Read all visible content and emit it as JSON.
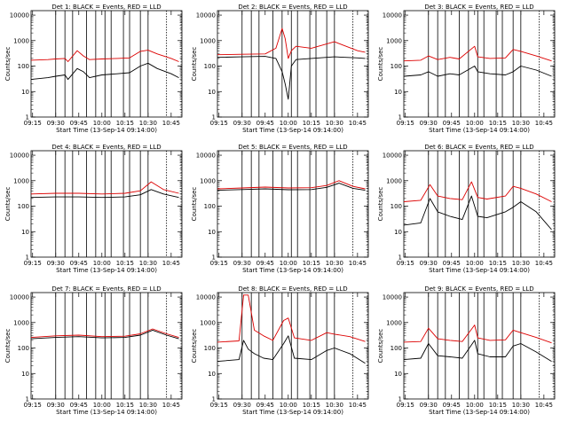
{
  "figure": {
    "x_tick_labels": [
      "09:15",
      "09:30",
      "09:45",
      "10:00",
      "10:15",
      "10:30",
      "10:45"
    ],
    "y_tick_labels": [
      "1",
      "10",
      "100",
      "1000",
      "10000"
    ],
    "y_label": "Counts/sec",
    "x_label": "Start Time (13-Sep-14 09:14:00)"
  },
  "chart_data": [
    {
      "type": "line",
      "title": "Det 1: BLACK = Events, RED = LLD",
      "xlabel": "Start Time (13-Sep-14 09:14:00)",
      "ylabel": "Counts/sec",
      "xlim": [
        "09:14",
        "10:52"
      ],
      "ylim": [
        1,
        15000
      ],
      "yscale": "log",
      "markers": [
        "09:30",
        "09:36",
        "09:41",
        "09:50",
        "09:56",
        "10:02",
        "10:06",
        "10:14",
        "10:18",
        "10:25",
        "10:30",
        "10:42"
      ],
      "series": [
        {
          "name": "BLACK = Events",
          "color": "#000000",
          "x": [
            "09:14",
            "09:25",
            "09:30",
            "09:36",
            "09:38",
            "09:44",
            "09:48",
            "09:52",
            "10:00",
            "10:10",
            "10:18",
            "10:25",
            "10:30",
            "10:36",
            "10:45",
            "10:50"
          ],
          "values": [
            30,
            35,
            40,
            45,
            30,
            80,
            60,
            35,
            45,
            50,
            55,
            100,
            130,
            80,
            50,
            35
          ]
        },
        {
          "name": "RED = LLD",
          "color": "#dd0000",
          "x": [
            "09:14",
            "09:25",
            "09:30",
            "09:36",
            "09:38",
            "09:44",
            "09:48",
            "09:52",
            "10:00",
            "10:10",
            "10:18",
            "10:25",
            "10:30",
            "10:36",
            "10:45",
            "10:50"
          ],
          "values": [
            170,
            180,
            190,
            200,
            150,
            400,
            250,
            180,
            190,
            200,
            210,
            380,
            420,
            300,
            200,
            150
          ]
        }
      ]
    },
    {
      "type": "line",
      "title": "Det 2: BLACK = Events, RED = LLD",
      "xlabel": "Start Time (13-Sep-14 09:14:00)",
      "ylabel": "Counts/sec",
      "xlim": [
        "09:14",
        "10:52"
      ],
      "ylim": [
        1,
        15000
      ],
      "yscale": "log",
      "markers": [
        "09:30",
        "09:36",
        "09:41",
        "09:50",
        "09:56",
        "10:02",
        "10:06",
        "10:14",
        "10:18",
        "10:25",
        "10:30",
        "10:42"
      ],
      "series": [
        {
          "name": "BLACK = Events",
          "color": "#000000",
          "x": [
            "09:14",
            "09:30",
            "09:45",
            "09:52",
            "09:56",
            "09:58",
            "10:00",
            "10:02",
            "10:05",
            "10:15",
            "10:30",
            "10:45",
            "10:50"
          ],
          "values": [
            220,
            230,
            240,
            200,
            60,
            20,
            5,
            100,
            180,
            200,
            230,
            210,
            200
          ]
        },
        {
          "name": "RED = LLD",
          "color": "#dd0000",
          "x": [
            "09:14",
            "09:30",
            "09:45",
            "09:52",
            "09:56",
            "09:58",
            "10:00",
            "10:02",
            "10:05",
            "10:15",
            "10:30",
            "10:45",
            "10:50"
          ],
          "values": [
            280,
            290,
            300,
            500,
            3000,
            1200,
            200,
            400,
            600,
            500,
            900,
            400,
            350
          ]
        }
      ]
    },
    {
      "type": "line",
      "title": "Det 3: BLACK = Events, RED = LLD",
      "xlabel": "Start Time (13-Sep-14 09:14:00)",
      "ylabel": "Counts/sec",
      "xlim": [
        "09:14",
        "10:52"
      ],
      "ylim": [
        1,
        15000
      ],
      "yscale": "log",
      "markers": [
        "09:30",
        "09:36",
        "09:41",
        "09:50",
        "09:56",
        "10:02",
        "10:06",
        "10:14",
        "10:18",
        "10:25",
        "10:30",
        "10:42"
      ],
      "series": [
        {
          "name": "BLACK = Events",
          "color": "#000000",
          "x": [
            "09:14",
            "09:25",
            "09:30",
            "09:36",
            "09:44",
            "09:50",
            "10:00",
            "10:02",
            "10:10",
            "10:20",
            "10:25",
            "10:30",
            "10:40",
            "10:50"
          ],
          "values": [
            40,
            45,
            60,
            40,
            50,
            45,
            100,
            60,
            50,
            45,
            60,
            100,
            70,
            40
          ]
        },
        {
          "name": "RED = LLD",
          "color": "#dd0000",
          "x": [
            "09:14",
            "09:25",
            "09:30",
            "09:36",
            "09:44",
            "09:50",
            "10:00",
            "10:02",
            "10:10",
            "10:20",
            "10:25",
            "10:30",
            "10:40",
            "10:50"
          ],
          "values": [
            160,
            170,
            250,
            180,
            220,
            190,
            600,
            230,
            200,
            210,
            450,
            380,
            250,
            160
          ]
        }
      ]
    },
    {
      "type": "line",
      "title": "Det 4: BLACK = Events, RED = LLD",
      "xlabel": "Start Time (13-Sep-14 09:14:00)",
      "ylabel": "Counts/sec",
      "xlim": [
        "09:14",
        "10:52"
      ],
      "ylim": [
        1,
        15000
      ],
      "yscale": "log",
      "markers": [
        "09:30",
        "09:36",
        "09:41",
        "09:50",
        "09:56",
        "10:02",
        "10:06",
        "10:14",
        "10:18",
        "10:25",
        "10:30",
        "10:42"
      ],
      "series": [
        {
          "name": "BLACK = Events",
          "color": "#000000",
          "x": [
            "09:14",
            "09:30",
            "09:45",
            "10:00",
            "10:15",
            "10:25",
            "10:32",
            "10:40",
            "10:50"
          ],
          "values": [
            220,
            230,
            230,
            220,
            230,
            280,
            450,
            300,
            220
          ]
        },
        {
          "name": "RED = LLD",
          "color": "#dd0000",
          "x": [
            "09:14",
            "09:30",
            "09:45",
            "10:00",
            "10:15",
            "10:25",
            "10:32",
            "10:40",
            "10:50"
          ],
          "values": [
            300,
            320,
            320,
            300,
            320,
            400,
            900,
            450,
            320
          ]
        }
      ]
    },
    {
      "type": "line",
      "title": "Det 5: BLACK = Events, RED = LLD",
      "xlabel": "Start Time (13-Sep-14 09:14:00)",
      "ylabel": "Counts/sec",
      "xlim": [
        "09:14",
        "10:52"
      ],
      "ylim": [
        1,
        15000
      ],
      "yscale": "log",
      "markers": [
        "09:30",
        "09:36",
        "09:41",
        "09:50",
        "09:56",
        "10:02",
        "10:06",
        "10:14",
        "10:18",
        "10:25",
        "10:30",
        "10:42"
      ],
      "series": [
        {
          "name": "BLACK = Events",
          "color": "#000000",
          "x": [
            "09:14",
            "09:30",
            "09:45",
            "10:00",
            "10:15",
            "10:25",
            "10:33",
            "10:42",
            "10:50"
          ],
          "values": [
            420,
            450,
            480,
            440,
            450,
            550,
            800,
            500,
            420
          ]
        },
        {
          "name": "RED = LLD",
          "color": "#dd0000",
          "x": [
            "09:14",
            "09:30",
            "09:45",
            "10:00",
            "10:15",
            "10:25",
            "10:33",
            "10:42",
            "10:50"
          ],
          "values": [
            480,
            520,
            560,
            520,
            530,
            650,
            1000,
            600,
            480
          ]
        }
      ]
    },
    {
      "type": "line",
      "title": "Det 6: BLACK = Events, RED = LLD",
      "xlabel": "Start Time (13-Sep-14 09:14:00)",
      "ylabel": "Counts/sec",
      "xlim": [
        "09:14",
        "10:52"
      ],
      "ylim": [
        1,
        15000
      ],
      "yscale": "log",
      "markers": [
        "09:30",
        "09:36",
        "09:41",
        "09:50",
        "09:56",
        "10:02",
        "10:06",
        "10:14",
        "10:18",
        "10:25",
        "10:30",
        "10:42"
      ],
      "series": [
        {
          "name": "BLACK = Events",
          "color": "#000000",
          "x": [
            "09:14",
            "09:25",
            "09:31",
            "09:36",
            "09:44",
            "09:52",
            "09:58",
            "10:02",
            "10:08",
            "10:20",
            "10:25",
            "10:30",
            "10:40",
            "10:50"
          ],
          "values": [
            18,
            22,
            200,
            60,
            40,
            30,
            250,
            40,
            35,
            60,
            90,
            150,
            60,
            12
          ]
        },
        {
          "name": "RED = LLD",
          "color": "#dd0000",
          "x": [
            "09:14",
            "09:25",
            "09:31",
            "09:36",
            "09:44",
            "09:52",
            "09:58",
            "10:02",
            "10:08",
            "10:20",
            "10:25",
            "10:30",
            "10:40",
            "10:50"
          ],
          "values": [
            150,
            170,
            700,
            250,
            200,
            180,
            900,
            220,
            190,
            250,
            600,
            500,
            300,
            150
          ]
        }
      ]
    },
    {
      "type": "line",
      "title": "Det 7: BLACK = Events, RED = LLD",
      "xlabel": "Start Time (13-Sep-14 09:14:00)",
      "ylabel": "Counts/sec",
      "xlim": [
        "09:14",
        "10:52"
      ],
      "ylim": [
        1,
        15000
      ],
      "yscale": "log",
      "markers": [
        "09:30",
        "09:36",
        "09:41",
        "09:50",
        "09:56",
        "10:02",
        "10:06",
        "10:14",
        "10:18",
        "10:25",
        "10:30",
        "10:42"
      ],
      "series": [
        {
          "name": "BLACK = Events",
          "color": "#000000",
          "x": [
            "09:14",
            "09:30",
            "09:45",
            "10:00",
            "10:15",
            "10:25",
            "10:33",
            "10:42",
            "10:50"
          ],
          "values": [
            230,
            260,
            280,
            250,
            260,
            320,
            500,
            320,
            230
          ]
        },
        {
          "name": "RED = LLD",
          "color": "#dd0000",
          "x": [
            "09:14",
            "09:30",
            "09:45",
            "10:00",
            "10:15",
            "10:25",
            "10:33",
            "10:42",
            "10:50"
          ],
          "values": [
            260,
            300,
            320,
            280,
            290,
            360,
            560,
            360,
            260
          ]
        }
      ]
    },
    {
      "type": "line",
      "title": "Det 8: BLACK = Events, RED = LLD",
      "xlabel": "Start Time (13-Sep-14 09:14:00)",
      "ylabel": "Counts/sec",
      "xlim": [
        "09:14",
        "10:52"
      ],
      "ylim": [
        1,
        15000
      ],
      "yscale": "log",
      "markers": [
        "09:30",
        "09:36",
        "09:41",
        "09:50",
        "09:56",
        "10:02",
        "10:06",
        "10:14",
        "10:18",
        "10:25",
        "10:30",
        "10:42"
      ],
      "series": [
        {
          "name": "BLACK = Events",
          "color": "#000000",
          "x": [
            "09:14",
            "09:28",
            "09:31",
            "09:34",
            "09:38",
            "09:44",
            "09:50",
            "09:57",
            "10:00",
            "10:04",
            "10:15",
            "10:25",
            "10:30",
            "10:40",
            "10:50"
          ],
          "values": [
            30,
            35,
            200,
            90,
            60,
            40,
            35,
            150,
            300,
            40,
            35,
            80,
            100,
            60,
            25
          ]
        },
        {
          "name": "RED = LLD",
          "color": "#dd0000",
          "x": [
            "09:14",
            "09:28",
            "09:31",
            "09:34",
            "09:38",
            "09:44",
            "09:50",
            "09:57",
            "10:00",
            "10:04",
            "10:15",
            "10:25",
            "10:30",
            "10:40",
            "10:50"
          ],
          "values": [
            170,
            190,
            12000,
            12000,
            500,
            300,
            200,
            1200,
            1500,
            250,
            200,
            400,
            350,
            280,
            180
          ]
        }
      ]
    },
    {
      "type": "line",
      "title": "Det 9: BLACK = Events, RED = LLD",
      "xlabel": "Start Time (13-Sep-14 09:14:00)",
      "ylabel": "Counts/sec",
      "xlim": [
        "09:14",
        "10:52"
      ],
      "ylim": [
        1,
        15000
      ],
      "yscale": "log",
      "markers": [
        "09:30",
        "09:36",
        "09:41",
        "09:50",
        "09:56",
        "10:02",
        "10:06",
        "10:14",
        "10:18",
        "10:25",
        "10:30",
        "10:42"
      ],
      "series": [
        {
          "name": "BLACK = Events",
          "color": "#000000",
          "x": [
            "09:14",
            "09:25",
            "09:30",
            "09:36",
            "09:44",
            "09:52",
            "10:00",
            "10:02",
            "10:10",
            "10:20",
            "10:25",
            "10:30",
            "10:40",
            "10:50"
          ],
          "values": [
            35,
            40,
            150,
            50,
            45,
            40,
            200,
            60,
            45,
            45,
            120,
            150,
            70,
            30
          ]
        },
        {
          "name": "RED = LLD",
          "color": "#dd0000",
          "x": [
            "09:14",
            "09:25",
            "09:30",
            "09:36",
            "09:44",
            "09:52",
            "10:00",
            "10:02",
            "10:10",
            "10:20",
            "10:25",
            "10:30",
            "10:40",
            "10:50"
          ],
          "values": [
            170,
            180,
            600,
            230,
            200,
            180,
            800,
            250,
            200,
            210,
            500,
            400,
            260,
            160
          ]
        }
      ]
    }
  ]
}
